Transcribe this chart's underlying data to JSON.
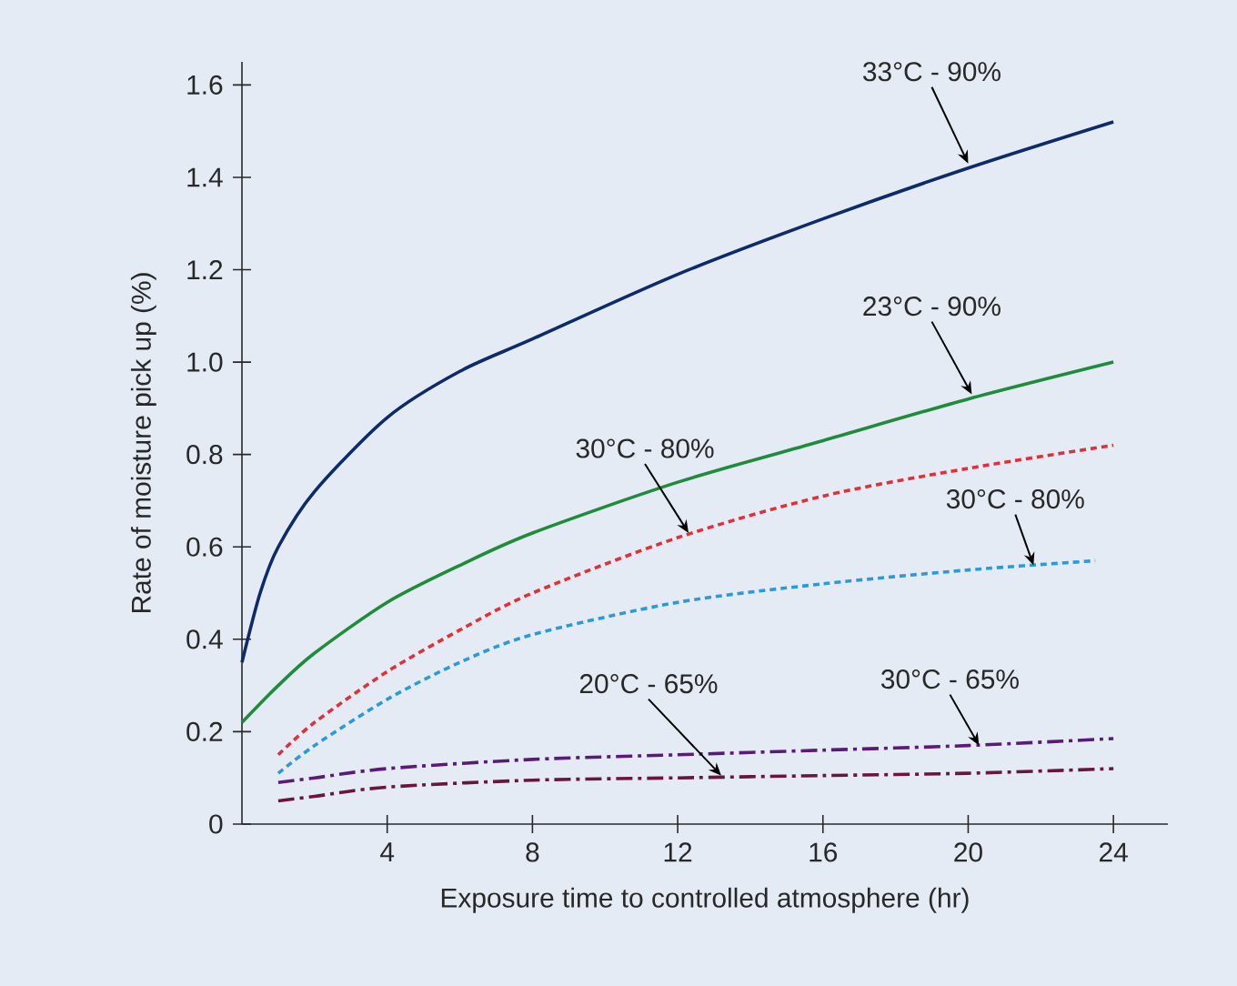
{
  "chart_data": {
    "type": "line",
    "xlabel": "Exposure time to controlled atmosphere (hr)",
    "ylabel": "Rate of moisture pick up (%)",
    "xlim": [
      0,
      25.5
    ],
    "ylim": [
      0,
      1.65
    ],
    "xticks": [
      4,
      8,
      12,
      16,
      20,
      24
    ],
    "yticks": [
      0,
      0.2,
      0.4,
      0.6,
      0.8,
      {
        "value": 1.0,
        "label": "1.0"
      },
      1.2,
      1.4,
      1.6
    ],
    "marker": "none",
    "series": [
      {
        "color": "#0d2a6b",
        "line_style": "solid",
        "x": [
          0,
          0.5,
          1,
          2,
          4,
          6,
          8,
          12,
          16,
          20,
          24
        ],
        "values": [
          0.35,
          0.5,
          0.6,
          0.72,
          0.88,
          0.98,
          1.05,
          1.19,
          1.31,
          1.42,
          1.52
        ]
      },
      {
        "color": "#1e8c3a",
        "line_style": "solid",
        "x": [
          0,
          1,
          2,
          4,
          6,
          8,
          12,
          16,
          20,
          24
        ],
        "values": [
          0.22,
          0.3,
          0.37,
          0.48,
          0.56,
          0.63,
          0.74,
          0.83,
          0.92,
          1.0
        ]
      },
      {
        "color": "#e0303a",
        "line_style": "dotted",
        "x": [
          1,
          2,
          4,
          6,
          8,
          12,
          16,
          20,
          24
        ],
        "values": [
          0.15,
          0.22,
          0.33,
          0.42,
          0.5,
          0.62,
          0.71,
          0.77,
          0.82
        ]
      },
      {
        "color": "#2a9ad8",
        "line_style": "dotted",
        "x": [
          1,
          2,
          4,
          6,
          8,
          12,
          16,
          20,
          23.5
        ],
        "values": [
          0.11,
          0.17,
          0.27,
          0.35,
          0.41,
          0.48,
          0.52,
          0.55,
          0.57
        ]
      },
      {
        "color": "#5a1a78",
        "line_style": "dashdot",
        "x": [
          1,
          2,
          4,
          8,
          12,
          16,
          20,
          24
        ],
        "values": [
          0.09,
          0.1,
          0.12,
          0.14,
          0.15,
          0.16,
          0.17,
          0.185
        ]
      },
      {
        "color": "#6a1440",
        "line_style": "dashdot",
        "x": [
          1,
          2,
          4,
          8,
          12,
          16,
          20,
          24
        ],
        "values": [
          0.05,
          0.06,
          0.08,
          0.095,
          0.1,
          0.105,
          0.11,
          0.12
        ]
      }
    ],
    "annotations": [
      {
        "text": "33°C - 90%",
        "x": 20,
        "y": 1.43
      },
      {
        "text": "23°C - 90%",
        "x": 20.1,
        "y": 0.93
      },
      {
        "text": "30°C - 80%",
        "x": 12.3,
        "y": 0.63
      },
      {
        "text": "30°C - 80%",
        "x": 21.8,
        "y": 0.56
      },
      {
        "text": "30°C - 65%",
        "x": 20.3,
        "y": 0.17
      },
      {
        "text": "20°C - 65%",
        "x": 13.2,
        "y": 0.105
      }
    ]
  }
}
